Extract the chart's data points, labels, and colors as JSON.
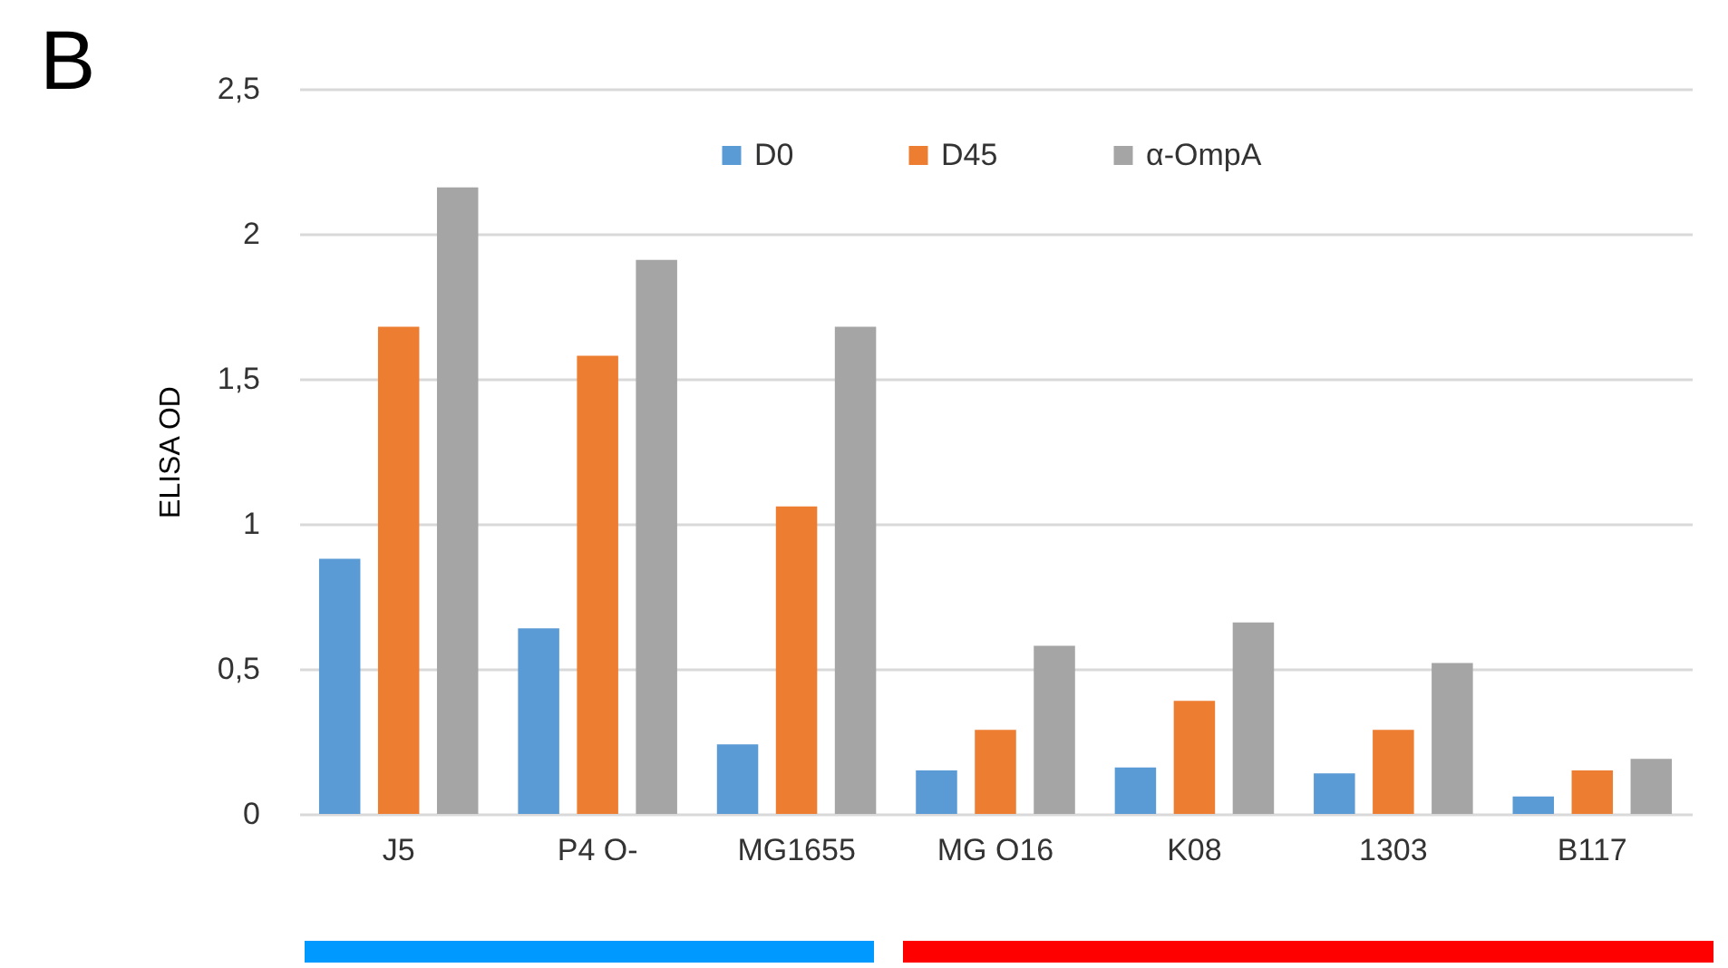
{
  "chart_data": {
    "type": "bar",
    "ylabel": "ELISA OD",
    "annotations": [
      "B"
    ],
    "categories": [
      "J5",
      "P4 O-",
      "MG1655",
      "MG O16",
      "K08",
      "1303",
      "B117"
    ],
    "series": [
      {
        "name": "D0",
        "color": "#5b9bd5",
        "values": [
          0.88,
          0.64,
          0.24,
          0.15,
          0.16,
          0.14,
          0.06
        ]
      },
      {
        "name": "D45",
        "color": "#ed7d31",
        "values": [
          1.68,
          1.58,
          1.06,
          0.29,
          0.39,
          0.29,
          0.15
        ]
      },
      {
        "name": "α-OmpA",
        "color": "#a5a5a5",
        "values": [
          2.16,
          1.91,
          1.68,
          0.58,
          0.66,
          0.52,
          0.19
        ]
      }
    ],
    "ylim": [
      0,
      2.5
    ],
    "yticks": [
      0,
      {
        "value": 0.5,
        "label": "0,5"
      },
      1,
      {
        "value": 1.5,
        "label": "1,5"
      },
      2,
      {
        "value": 2.5,
        "label": "2,5"
      }
    ],
    "grid": "y",
    "legend": "top"
  }
}
